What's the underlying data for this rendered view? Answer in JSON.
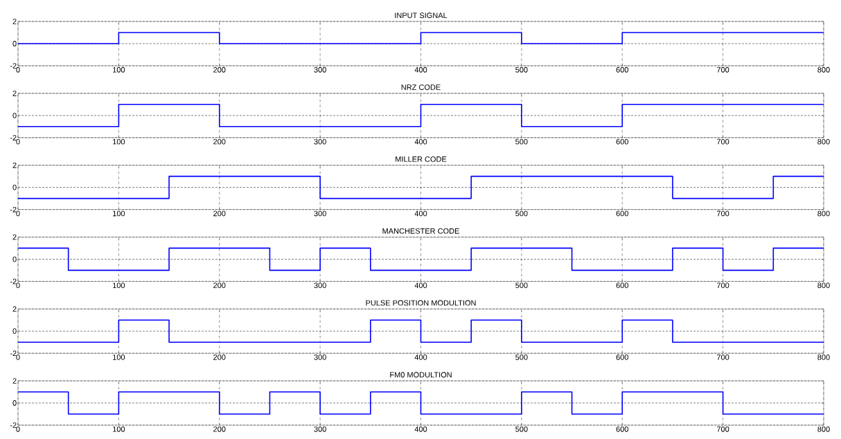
{
  "chart_data": [
    {
      "type": "step",
      "title": "INPUT SIGNAL",
      "x": [
        0,
        100,
        200,
        400,
        500,
        600,
        800
      ],
      "values": [
        0,
        1,
        0,
        1,
        0,
        1,
        1
      ],
      "color": "#0000ff",
      "xlim": [
        0,
        800
      ],
      "ylim": [
        -2,
        2
      ],
      "xticks": [
        0,
        100,
        200,
        300,
        400,
        500,
        600,
        700,
        800
      ],
      "yticks": [
        -2,
        0,
        2
      ],
      "grid": true
    },
    {
      "type": "step",
      "title": "NRZ CODE",
      "x": [
        0,
        100,
        200,
        400,
        500,
        600,
        800
      ],
      "values": [
        -1,
        1,
        -1,
        1,
        -1,
        1,
        1
      ],
      "color": "#0000ff",
      "xlim": [
        0,
        800
      ],
      "ylim": [
        -2,
        2
      ],
      "xticks": [
        0,
        100,
        200,
        300,
        400,
        500,
        600,
        700,
        800
      ],
      "yticks": [
        -2,
        0,
        2
      ],
      "grid": true
    },
    {
      "type": "step",
      "title": "MILLER CODE",
      "x": [
        0,
        150,
        300,
        450,
        650,
        750,
        800
      ],
      "values": [
        -1,
        1,
        -1,
        1,
        -1,
        1,
        1
      ],
      "color": "#0000ff",
      "xlim": [
        0,
        800
      ],
      "ylim": [
        -2,
        2
      ],
      "xticks": [
        0,
        100,
        200,
        300,
        400,
        500,
        600,
        700,
        800
      ],
      "yticks": [
        -2,
        0,
        2
      ],
      "grid": true
    },
    {
      "type": "step",
      "title": "MANCHESTER CODE",
      "x": [
        0,
        50,
        150,
        250,
        300,
        350,
        450,
        550,
        650,
        700,
        750,
        800
      ],
      "values": [
        1,
        -1,
        1,
        -1,
        1,
        -1,
        1,
        -1,
        1,
        -1,
        1,
        1
      ],
      "color": "#0000ff",
      "xlim": [
        0,
        800
      ],
      "ylim": [
        -2,
        2
      ],
      "xticks": [
        0,
        100,
        200,
        300,
        400,
        500,
        600,
        700,
        800
      ],
      "yticks": [
        -2,
        0,
        2
      ],
      "grid": true
    },
    {
      "type": "step",
      "title": "PULSE POSITION MODULTION",
      "x": [
        0,
        100,
        150,
        350,
        400,
        450,
        500,
        600,
        650,
        800
      ],
      "values": [
        -1,
        1,
        -1,
        1,
        -1,
        1,
        -1,
        1,
        -1,
        -1
      ],
      "color": "#0000ff",
      "xlim": [
        0,
        800
      ],
      "ylim": [
        -2,
        2
      ],
      "xticks": [
        0,
        100,
        200,
        300,
        400,
        500,
        600,
        700,
        800
      ],
      "yticks": [
        -2,
        0,
        2
      ],
      "grid": true
    },
    {
      "type": "step",
      "title": "FM0 MODULTION",
      "x": [
        0,
        50,
        100,
        200,
        250,
        300,
        350,
        400,
        500,
        550,
        600,
        700,
        800
      ],
      "values": [
        1,
        -1,
        1,
        -1,
        1,
        -1,
        1,
        -1,
        1,
        -1,
        1,
        -1,
        -1
      ],
      "color": "#0000ff",
      "xlim": [
        0,
        800
      ],
      "ylim": [
        -2,
        2
      ],
      "xticks": [
        0,
        100,
        200,
        300,
        400,
        500,
        600,
        700,
        800
      ],
      "yticks": [
        -2,
        0,
        2
      ],
      "grid": true
    }
  ]
}
